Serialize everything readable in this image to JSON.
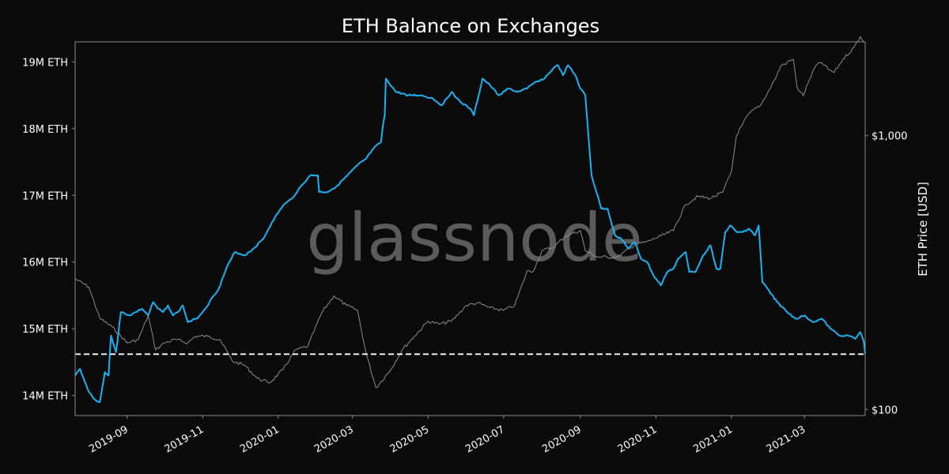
{
  "chart_data": {
    "type": "line",
    "title": "ETH Balance on Exchanges",
    "watermark": "glassnode",
    "y_left": {
      "ylim": [
        13700000,
        19300000
      ],
      "ticks": [
        14000000,
        15000000,
        16000000,
        17000000,
        18000000,
        19000000
      ],
      "tick_labels": [
        "14M ETH",
        "15M ETH",
        "16M ETH",
        "17M ETH",
        "18M ETH",
        "19M ETH"
      ]
    },
    "y_right": {
      "label": "ETH Price [USD]",
      "scale": "log",
      "ylim": [
        95,
        2200
      ],
      "ticks": [
        100,
        1000
      ],
      "tick_labels": [
        "$100",
        "$1,000"
      ]
    },
    "x_axis": {
      "range": [
        "2019-07-21",
        "2021-04-19"
      ],
      "ticks": [
        "2019-09-01",
        "2019-11-01",
        "2020-01-01",
        "2020-03-01",
        "2020-05-01",
        "2020-07-01",
        "2020-09-01",
        "2020-11-01",
        "2021-01-01",
        "2021-03-01"
      ],
      "tick_labels": [
        "2019-09",
        "2019-11",
        "2020-01",
        "2020-03",
        "2020-05",
        "2020-07",
        "2020-09",
        "2020-11",
        "2021-01",
        "2021-03"
      ]
    },
    "reference_line": {
      "value": 14620000,
      "style": "dashed",
      "color": "#ffffff"
    },
    "series": [
      {
        "axis": "left",
        "color": "#1ab2f2",
        "x": [
          "2019-07-21",
          "2019-07-25",
          "2019-07-31",
          "2019-08-05",
          "2019-08-10",
          "2019-08-14",
          "2019-08-17",
          "2019-08-19",
          "2019-08-23",
          "2019-08-27",
          "2019-09-03",
          "2019-09-08",
          "2019-09-13",
          "2019-09-18",
          "2019-09-22",
          "2019-09-26",
          "2019-09-30",
          "2019-10-04",
          "2019-10-08",
          "2019-10-12",
          "2019-10-16",
          "2019-10-20",
          "2019-10-27",
          "2019-11-03",
          "2019-11-10",
          "2019-11-14",
          "2019-11-20",
          "2019-11-27",
          "2019-12-05",
          "2019-12-12",
          "2019-12-20",
          "2019-12-27",
          "2020-01-05",
          "2020-01-12",
          "2020-01-20",
          "2020-01-27",
          "2020-02-02",
          "2020-02-03",
          "2020-02-10",
          "2020-02-18",
          "2020-02-26",
          "2020-03-05",
          "2020-03-12",
          "2020-03-18",
          "2020-03-24",
          "2020-03-26",
          "2020-03-27",
          "2020-03-28",
          "2020-04-05",
          "2020-04-15",
          "2020-04-25",
          "2020-05-05",
          "2020-05-12",
          "2020-05-20",
          "2020-05-27",
          "2020-06-04",
          "2020-06-07",
          "2020-06-14",
          "2020-06-20",
          "2020-06-27",
          "2020-07-05",
          "2020-07-12",
          "2020-07-20",
          "2020-07-27",
          "2020-08-03",
          "2020-08-10",
          "2020-08-14",
          "2020-08-18",
          "2020-08-22",
          "2020-08-28",
          "2020-09-01",
          "2020-09-05",
          "2020-09-10",
          "2020-09-18",
          "2020-09-23",
          "2020-09-29",
          "2020-10-04",
          "2020-10-10",
          "2020-10-15",
          "2020-10-20",
          "2020-10-25",
          "2020-10-30",
          "2020-11-05",
          "2020-11-10",
          "2020-11-15",
          "2020-11-19",
          "2020-11-25",
          "2020-11-28",
          "2020-12-03",
          "2020-12-09",
          "2020-12-15",
          "2020-12-20",
          "2020-12-23",
          "2020-12-27",
          "2020-12-31",
          "2021-01-05",
          "2021-01-10",
          "2021-01-15",
          "2021-01-20",
          "2021-01-23",
          "2021-01-26",
          "2021-02-01",
          "2021-02-07",
          "2021-02-15",
          "2021-02-22",
          "2021-03-01",
          "2021-03-08",
          "2021-03-15",
          "2021-03-22",
          "2021-03-29",
          "2021-04-05",
          "2021-04-11",
          "2021-04-15",
          "2021-04-18",
          "2021-04-19"
        ],
        "values": [
          14300000,
          14400000,
          14100000,
          13950000,
          13900000,
          14350000,
          14300000,
          14900000,
          14650000,
          15250000,
          15200000,
          15250000,
          15300000,
          15200000,
          15400000,
          15300000,
          15250000,
          15350000,
          15200000,
          15250000,
          15350000,
          15100000,
          15150000,
          15300000,
          15500000,
          15600000,
          15900000,
          16150000,
          16100000,
          16200000,
          16350000,
          16600000,
          16850000,
          16950000,
          17150000,
          17300000,
          17300000,
          17050000,
          17050000,
          17150000,
          17300000,
          17450000,
          17550000,
          17700000,
          17800000,
          18100000,
          18200000,
          18750000,
          18550000,
          18500000,
          18500000,
          18450000,
          18350000,
          18550000,
          18400000,
          18300000,
          18200000,
          18750000,
          18650000,
          18500000,
          18600000,
          18550000,
          18600000,
          18700000,
          18750000,
          18900000,
          18950000,
          18800000,
          18950000,
          18800000,
          18600000,
          18500000,
          17300000,
          16800000,
          16800000,
          16400000,
          16350000,
          16200000,
          16300000,
          16050000,
          16000000,
          15800000,
          15650000,
          15850000,
          15900000,
          16050000,
          16150000,
          15850000,
          15850000,
          16100000,
          16250000,
          15900000,
          15900000,
          16450000,
          16550000,
          16450000,
          16450000,
          16500000,
          16400000,
          16550000,
          15700000,
          15550000,
          15400000,
          15250000,
          15150000,
          15200000,
          15100000,
          15150000,
          15000000,
          14900000,
          14900000,
          14850000,
          14950000,
          14800000,
          14620000
        ]
      },
      {
        "axis": "right",
        "color": "#8c8c8c",
        "x": [
          "2019-07-21",
          "2019-08-01",
          "2019-08-10",
          "2019-08-20",
          "2019-09-01",
          "2019-09-10",
          "2019-09-18",
          "2019-09-24",
          "2019-10-01",
          "2019-10-10",
          "2019-10-20",
          "2019-10-26",
          "2019-11-05",
          "2019-11-15",
          "2019-11-25",
          "2019-12-05",
          "2019-12-15",
          "2019-12-25",
          "2020-01-05",
          "2020-01-15",
          "2020-01-25",
          "2020-02-05",
          "2020-02-15",
          "2020-02-25",
          "2020-03-05",
          "2020-03-12",
          "2020-03-20",
          "2020-04-01",
          "2020-04-10",
          "2020-04-20",
          "2020-05-01",
          "2020-05-10",
          "2020-05-20",
          "2020-06-01",
          "2020-06-10",
          "2020-06-20",
          "2020-07-01",
          "2020-07-10",
          "2020-07-20",
          "2020-07-25",
          "2020-08-01",
          "2020-08-10",
          "2020-08-20",
          "2020-09-01",
          "2020-09-05",
          "2020-09-15",
          "2020-10-01",
          "2020-10-15",
          "2020-10-25",
          "2020-11-05",
          "2020-11-15",
          "2020-11-25",
          "2020-12-05",
          "2020-12-15",
          "2020-12-25",
          "2021-01-01",
          "2021-01-05",
          "2021-01-10",
          "2021-01-15",
          "2021-01-25",
          "2021-02-05",
          "2021-02-10",
          "2021-02-15",
          "2021-02-20",
          "2021-02-23",
          "2021-02-28",
          "2021-03-05",
          "2021-03-10",
          "2021-03-15",
          "2021-03-20",
          "2021-03-25",
          "2021-04-01",
          "2021-04-10",
          "2021-04-15",
          "2021-04-18"
        ],
        "values": [
          300,
          280,
          215,
          200,
          175,
          180,
          220,
          165,
          175,
          180,
          175,
          185,
          185,
          180,
          150,
          145,
          130,
          125,
          140,
          165,
          170,
          225,
          260,
          240,
          230,
          160,
          120,
          140,
          165,
          185,
          210,
          205,
          210,
          240,
          245,
          235,
          230,
          240,
          320,
          320,
          380,
          390,
          430,
          450,
          380,
          360,
          360,
          400,
          410,
          430,
          450,
          560,
          600,
          590,
          620,
          740,
          1000,
          1100,
          1200,
          1300,
          1600,
          1800,
          1850,
          1900,
          1500,
          1400,
          1600,
          1800,
          1850,
          1750,
          1700,
          1900,
          2100,
          2300,
          2200
        ]
      }
    ]
  }
}
